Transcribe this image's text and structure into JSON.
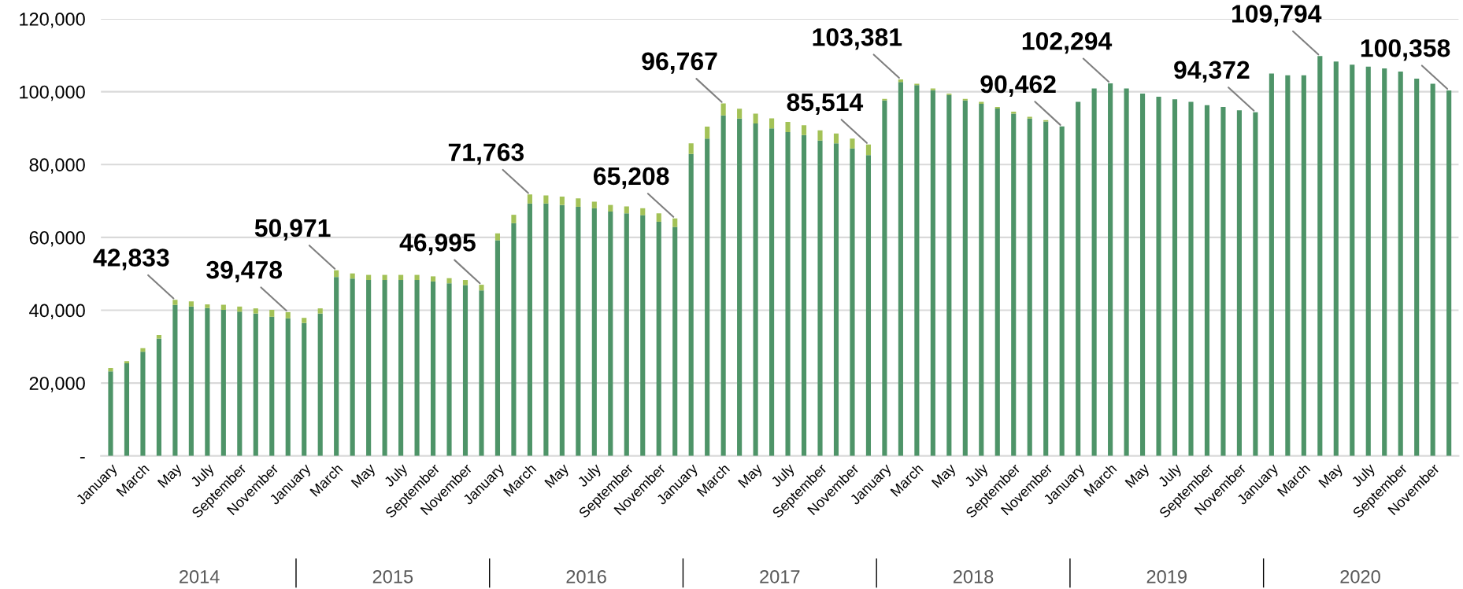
{
  "chart_data": {
    "type": "bar",
    "stacked": true,
    "grid": "y",
    "legend": false,
    "categories": [
      "January",
      null,
      "March",
      null,
      "May",
      null,
      "July",
      null,
      "September",
      null,
      "November",
      null,
      "January",
      null,
      "March",
      null,
      "May",
      null,
      "July",
      null,
      "September",
      null,
      "November",
      null,
      "January",
      null,
      "March",
      null,
      "May",
      null,
      "July",
      null,
      "September",
      null,
      "November",
      null,
      "January",
      null,
      "March",
      null,
      "May",
      null,
      "July",
      null,
      "September",
      null,
      "November",
      null,
      "January",
      null,
      "March",
      null,
      "May",
      null,
      "July",
      null,
      "September",
      null,
      "November",
      null,
      "January",
      null,
      "March",
      null,
      "May",
      null,
      "July",
      null,
      "September",
      null,
      "November",
      null,
      "January",
      null,
      "March",
      null,
      "May",
      null,
      "July",
      null,
      "September",
      null,
      "November",
      null
    ],
    "series": [
      {
        "color": "#4e9468",
        "values": [
          23200,
          25400,
          28600,
          32200,
          41430,
          41000,
          40600,
          40100,
          39600,
          39100,
          38200,
          37790,
          36500,
          39100,
          49140,
          48700,
          48300,
          48300,
          48300,
          48300,
          47900,
          47400,
          46900,
          45430,
          59200,
          63900,
          69290,
          69300,
          68900,
          68400,
          68000,
          67100,
          66600,
          66100,
          64300,
          62860,
          82900,
          87100,
          93500,
          92600,
          91300,
          89900,
          88900,
          88100,
          86600,
          85800,
          84400,
          82570,
          97600,
          102640,
          101800,
          100400,
          99100,
          97600,
          96700,
          95400,
          94000,
          92600,
          91800,
          90462,
          97200,
          100900,
          102294,
          100900,
          99500,
          98600,
          97900,
          97200,
          96300,
          95800,
          94900,
          94372,
          105000,
          104500,
          104500,
          109794,
          108300,
          107400,
          106900,
          106400,
          105500,
          103600,
          102200,
          100358
        ]
      },
      {
        "color": "#a3c257",
        "values": [
          900,
          600,
          1000,
          1000,
          1403,
          1400,
          1000,
          1400,
          1400,
          1400,
          1900,
          1688,
          1400,
          1400,
          1831,
          1400,
          1400,
          1400,
          1400,
          1400,
          1400,
          1400,
          1400,
          1565,
          1900,
          2300,
          2473,
          2200,
          2300,
          2300,
          1800,
          1800,
          1900,
          1900,
          2300,
          2348,
          2900,
          3300,
          3267,
          2700,
          2700,
          2800,
          2800,
          2700,
          2800,
          2700,
          2700,
          2944,
          400,
          741,
          400,
          500,
          400,
          400,
          500,
          400,
          500,
          500,
          400,
          0,
          0,
          0,
          0,
          0,
          0,
          0,
          0,
          0,
          0,
          0,
          0,
          0,
          0,
          0,
          0,
          0,
          0,
          0,
          0,
          0,
          0,
          0,
          0,
          0
        ]
      }
    ],
    "totals": [
      null,
      null,
      null,
      null,
      "42,833",
      null,
      null,
      null,
      null,
      null,
      null,
      "39,478",
      null,
      null,
      "50,971",
      null,
      null,
      null,
      null,
      null,
      null,
      null,
      null,
      "46,995",
      null,
      null,
      "71,763",
      null,
      null,
      null,
      null,
      null,
      null,
      null,
      null,
      "65,208",
      null,
      null,
      "96,767",
      null,
      null,
      null,
      null,
      null,
      null,
      null,
      null,
      "85,514",
      null,
      "103,381",
      null,
      null,
      null,
      null,
      null,
      null,
      null,
      null,
      null,
      "90,462",
      null,
      null,
      "102,294",
      null,
      null,
      null,
      null,
      null,
      null,
      null,
      null,
      "94,372",
      null,
      null,
      null,
      "109,794",
      null,
      null,
      null,
      null,
      null,
      null,
      null,
      "100,358"
    ],
    "ylim": [
      0,
      120000
    ],
    "yticks": [
      {
        "value": 0,
        "label": "-"
      },
      {
        "value": 20000,
        "label": "20,000"
      },
      {
        "value": 40000,
        "label": "40,000"
      },
      {
        "value": 60000,
        "label": "60,000"
      },
      {
        "value": 80000,
        "label": "80,000"
      },
      {
        "value": 100000,
        "label": "100,000"
      },
      {
        "value": 120000,
        "label": "120,000"
      }
    ],
    "annotations": [
      "2014",
      "2015",
      "2016",
      "2017",
      "2018",
      "2019",
      "2020"
    ]
  }
}
